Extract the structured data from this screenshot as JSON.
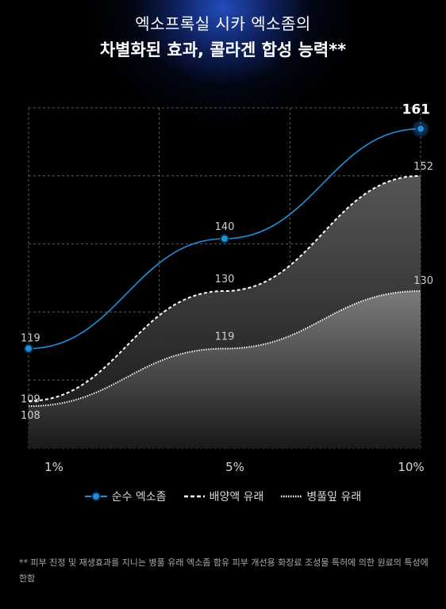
{
  "header": {
    "title_line1": "엑소프록실 시카 엑소좀의",
    "title_line2": "차별화된 효과, 콜라겐 합성 능력**"
  },
  "chart_data": {
    "type": "line",
    "categories": [
      "1%",
      "5%",
      "10%"
    ],
    "series": [
      {
        "name": "순수 엑소좀",
        "values": [
          119,
          140,
          161
        ],
        "labels": [
          "119",
          "140",
          "161"
        ],
        "style": "solid",
        "color": "#1e90d8"
      },
      {
        "name": "배양액 유래",
        "values": [
          109,
          130,
          152
        ],
        "labels": [
          "109",
          "130",
          "152"
        ],
        "style": "dashed",
        "color": "#ffffff"
      },
      {
        "name": "병풀잎 유래",
        "values": [
          108,
          119,
          130
        ],
        "labels": [
          "108",
          "119",
          "130"
        ],
        "style": "dotted",
        "color": "#ffffff"
      }
    ],
    "ylim": [
      100,
      165
    ],
    "grid": true,
    "legend_position": "bottom"
  },
  "legend": {
    "items": [
      {
        "label": "순수 엑소좀"
      },
      {
        "label": "배양액 유래"
      },
      {
        "label": "병풀잎 유래"
      }
    ]
  },
  "footnote": "** 피부 진정 및 재생효과를 지니는 병풀 유래 엑소좀 함유 피부 개선용 화장료 조성물 특허에 의한 원료의 특성에 한함",
  "colors": {
    "accent": "#1e90d8",
    "background": "#000000"
  }
}
